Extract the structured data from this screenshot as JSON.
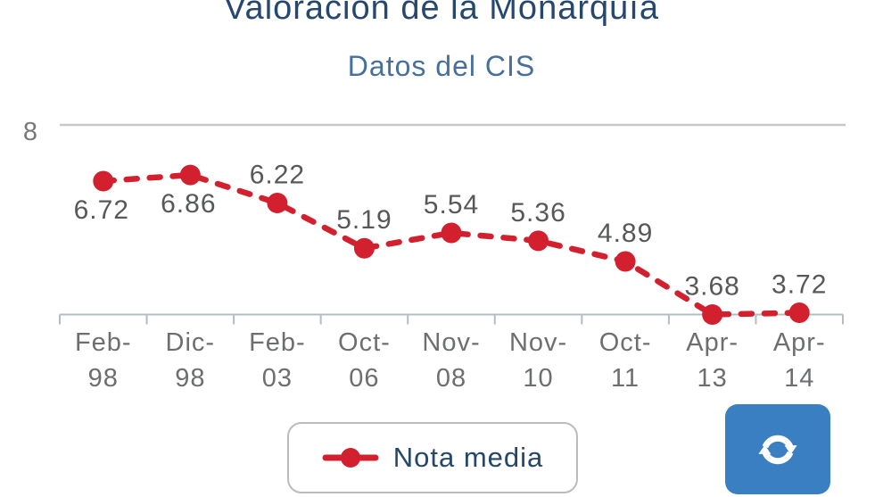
{
  "header": {
    "title": "Valoración de la Monarquía",
    "subtitle": "Datos del CIS"
  },
  "chart_data": {
    "type": "line",
    "title": "Valoración de la Monarquía",
    "subtitle": "Datos del CIS",
    "categories": [
      "Feb-98",
      "Dic-98",
      "Feb-03",
      "Oct-06",
      "Nov-08",
      "Nov-10",
      "Oct-11",
      "Apr-13",
      "Apr-14"
    ],
    "category_lines": [
      [
        "Feb-",
        "98"
      ],
      [
        "Dic-",
        "98"
      ],
      [
        "Feb-",
        "03"
      ],
      [
        "Oct-",
        "06"
      ],
      [
        "Nov-",
        "08"
      ],
      [
        "Nov-",
        "10"
      ],
      [
        "Oct-",
        "11"
      ],
      [
        "Apr-",
        "13"
      ],
      [
        "Apr-",
        "14"
      ]
    ],
    "series": [
      {
        "name": "Nota media",
        "values": [
          6.72,
          6.86,
          6.22,
          5.19,
          5.54,
          5.36,
          4.89,
          3.68,
          3.72
        ]
      }
    ],
    "value_label_positions": [
      "below",
      "below",
      "above",
      "above",
      "above",
      "above",
      "above",
      "above",
      "above"
    ],
    "y_axis": {
      "visible_tick_labels": [
        "8"
      ],
      "ylim": [
        3.68,
        8
      ]
    },
    "grid": "single top gridline at y=8",
    "line_style": "dashed",
    "legend_position": "bottom-center",
    "colors": {
      "line": "#d2202e",
      "point": "#d2202e",
      "value_labels": "#57585a",
      "axis_labels": "#6d6e70",
      "gridline": "#c8c8c8",
      "axis": "#b3bcc3"
    }
  },
  "legend": {
    "label": "Nota media"
  },
  "toolbar": {
    "refresh_icon": "refresh-icon"
  },
  "colors": {
    "title": "#26486e",
    "subtitle": "#46709b",
    "accent_blue": "#3a7fc2",
    "accent_red": "#d2202e"
  }
}
